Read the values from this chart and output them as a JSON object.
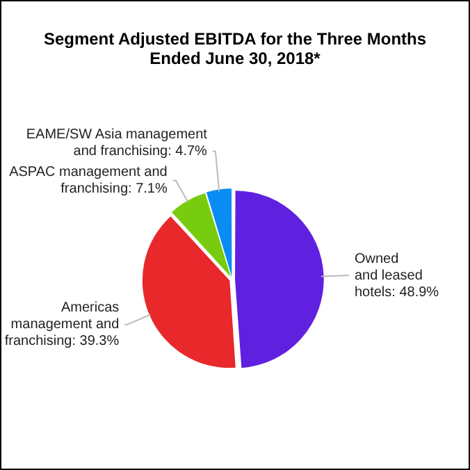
{
  "chart_data": {
    "type": "pie",
    "title": "Segment Adjusted EBITDA for the Three Months Ended June 30, 2018*",
    "categories": [
      "Owned and leased hotels",
      "Americas management and franchising",
      "ASPAC management and franchising",
      "EAME/SW Asia management and franchising"
    ],
    "values": [
      48.9,
      39.3,
      7.1,
      4.7
    ],
    "value_labels": [
      "48.9%",
      "39.3%",
      "7.1%",
      "4.7%"
    ],
    "colors": [
      "#6020e0",
      "#e8282a",
      "#78cc10",
      "#0a8cf5"
    ],
    "legend": false
  }
}
